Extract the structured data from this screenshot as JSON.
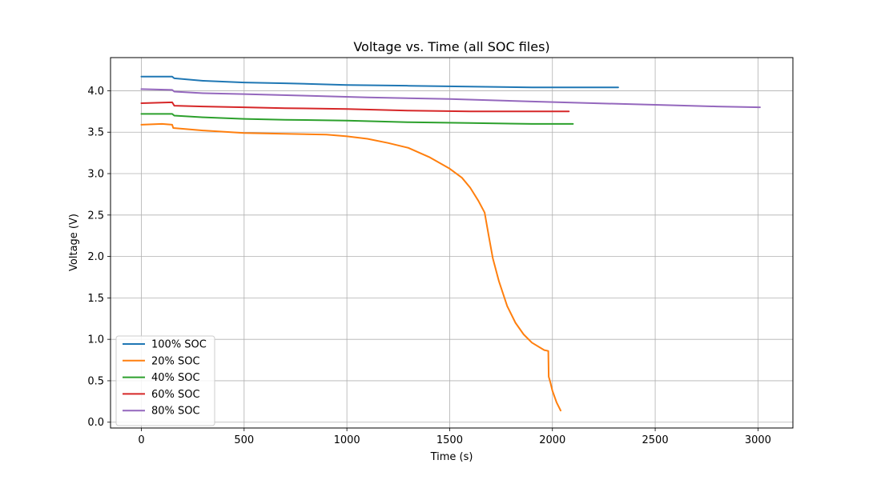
{
  "chart_data": {
    "type": "line",
    "title": "Voltage vs. Time (all SOC files)",
    "xlabel": "Time (s)",
    "ylabel": "Voltage (V)",
    "xlim": [
      -150,
      3170
    ],
    "ylim": [
      -0.07,
      4.4
    ],
    "xticks": [
      0,
      500,
      1000,
      1500,
      2000,
      2500,
      3000
    ],
    "yticks": [
      0.0,
      0.5,
      1.0,
      1.5,
      2.0,
      2.5,
      3.0,
      3.5,
      4.0
    ],
    "grid": true,
    "legend_position": "lower-left",
    "series": [
      {
        "name": "100% SOC",
        "color": "#1f77b4",
        "points": [
          [
            0,
            4.17
          ],
          [
            150,
            4.17
          ],
          [
            160,
            4.15
          ],
          [
            300,
            4.12
          ],
          [
            500,
            4.1
          ],
          [
            700,
            4.09
          ],
          [
            1000,
            4.07
          ],
          [
            1300,
            4.06
          ],
          [
            1600,
            4.05
          ],
          [
            1900,
            4.04
          ],
          [
            2000,
            4.04
          ],
          [
            2100,
            4.04
          ],
          [
            2320,
            4.04
          ]
        ]
      },
      {
        "name": "20% SOC",
        "color": "#ff7f0e",
        "points": [
          [
            0,
            3.59
          ],
          [
            100,
            3.6
          ],
          [
            150,
            3.59
          ],
          [
            155,
            3.55
          ],
          [
            300,
            3.52
          ],
          [
            500,
            3.49
          ],
          [
            700,
            3.48
          ],
          [
            900,
            3.47
          ],
          [
            1000,
            3.45
          ],
          [
            1100,
            3.42
          ],
          [
            1200,
            3.37
          ],
          [
            1300,
            3.31
          ],
          [
            1400,
            3.2
          ],
          [
            1500,
            3.06
          ],
          [
            1560,
            2.95
          ],
          [
            1600,
            2.83
          ],
          [
            1640,
            2.67
          ],
          [
            1670,
            2.53
          ],
          [
            1690,
            2.25
          ],
          [
            1710,
            1.98
          ],
          [
            1740,
            1.7
          ],
          [
            1780,
            1.4
          ],
          [
            1820,
            1.2
          ],
          [
            1860,
            1.06
          ],
          [
            1900,
            0.96
          ],
          [
            1960,
            0.87
          ],
          [
            1980,
            0.86
          ],
          [
            1982,
            0.55
          ],
          [
            1990,
            0.48
          ],
          [
            2000,
            0.38
          ],
          [
            2020,
            0.24
          ],
          [
            2040,
            0.14
          ]
        ]
      },
      {
        "name": "40% SOC",
        "color": "#2ca02c",
        "points": [
          [
            0,
            3.72
          ],
          [
            150,
            3.72
          ],
          [
            160,
            3.7
          ],
          [
            300,
            3.68
          ],
          [
            500,
            3.66
          ],
          [
            700,
            3.65
          ],
          [
            1000,
            3.64
          ],
          [
            1300,
            3.62
          ],
          [
            1600,
            3.61
          ],
          [
            1900,
            3.6
          ],
          [
            2100,
            3.6
          ]
        ]
      },
      {
        "name": "60% SOC",
        "color": "#d62728",
        "points": [
          [
            0,
            3.85
          ],
          [
            150,
            3.86
          ],
          [
            160,
            3.82
          ],
          [
            300,
            3.81
          ],
          [
            500,
            3.8
          ],
          [
            700,
            3.79
          ],
          [
            1000,
            3.78
          ],
          [
            1300,
            3.76
          ],
          [
            1600,
            3.75
          ],
          [
            1800,
            3.75
          ],
          [
            1900,
            3.75
          ],
          [
            2080,
            3.75
          ]
        ]
      },
      {
        "name": "80% SOC",
        "color": "#9467bd",
        "points": [
          [
            0,
            4.02
          ],
          [
            150,
            4.01
          ],
          [
            160,
            3.99
          ],
          [
            300,
            3.97
          ],
          [
            500,
            3.96
          ],
          [
            800,
            3.94
          ],
          [
            1100,
            3.92
          ],
          [
            1500,
            3.9
          ],
          [
            1900,
            3.87
          ],
          [
            2200,
            3.85
          ],
          [
            2500,
            3.83
          ],
          [
            2800,
            3.81
          ],
          [
            3010,
            3.8
          ]
        ]
      }
    ]
  }
}
